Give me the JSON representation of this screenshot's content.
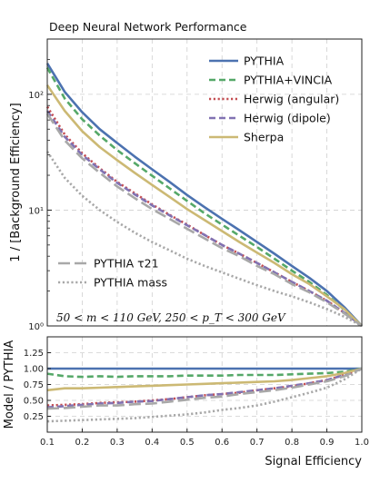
{
  "chart_data": [
    {
      "type": "line",
      "title": "Deep Neural Network Performance",
      "xlabel": "",
      "ylabel": "1 / [Background Efficiency]",
      "yscale": "log",
      "xlim": [
        0.1,
        1.0
      ],
      "ylim": [
        1,
        300
      ],
      "ytick_labels": [
        "10⁰",
        "10¹",
        "10²"
      ],
      "annotation": "50 < m < 110 GeV, 250 < p_T < 300 GeV",
      "legend_placement": "top-right",
      "grid": true,
      "x": [
        0.1,
        0.15,
        0.2,
        0.25,
        0.3,
        0.35,
        0.4,
        0.45,
        0.5,
        0.55,
        0.6,
        0.65,
        0.7,
        0.75,
        0.8,
        0.85,
        0.9,
        0.95,
        1.0
      ],
      "series": [
        {
          "name": "PYTHIA",
          "color": "#4c72b0",
          "style": "solid",
          "values": [
            185,
            105,
            70,
            50,
            38,
            29,
            22.5,
            17.5,
            13.5,
            10.6,
            8.4,
            6.7,
            5.3,
            4.2,
            3.3,
            2.6,
            2.0,
            1.45,
            1.0
          ]
        },
        {
          "name": "PYTHIA+VINCIA",
          "color": "#55a868",
          "style": "dashed",
          "values": [
            170,
            92,
            61,
            44,
            33,
            25.5,
            19.8,
            15.4,
            12.0,
            9.4,
            7.5,
            6.0,
            4.8,
            3.8,
            3.0,
            2.4,
            1.85,
            1.38,
            1.0
          ]
        },
        {
          "name": "Herwig (angular)",
          "color": "#c44e52",
          "style": "dotted",
          "values": [
            78,
            45,
            31,
            23,
            17.5,
            14.0,
            11.2,
            9.1,
            7.5,
            6.1,
            5.0,
            4.2,
            3.5,
            2.9,
            2.4,
            2.0,
            1.65,
            1.3,
            1.0
          ]
        },
        {
          "name": "Herwig (dipole)",
          "color": "#8172b2",
          "style": "dashed",
          "values": [
            72,
            43,
            30,
            22.5,
            17.2,
            13.7,
            11.0,
            9.0,
            7.4,
            6.1,
            5.0,
            4.2,
            3.5,
            2.9,
            2.4,
            2.0,
            1.65,
            1.3,
            1.0
          ]
        },
        {
          "name": "Sherpa",
          "color": "#ccb974",
          "style": "solid",
          "values": [
            120,
            72,
            48,
            35,
            27,
            21,
            16.5,
            13.0,
            10.2,
            8.2,
            6.6,
            5.3,
            4.3,
            3.5,
            2.8,
            2.3,
            1.8,
            1.4,
            1.0
          ]
        },
        {
          "name": "PYTHIA τ21",
          "color": "#a8a8a8",
          "style": "longdash",
          "values": [
            68,
            40,
            28,
            21,
            16,
            12.7,
            10.2,
            8.4,
            6.9,
            5.7,
            4.7,
            4.0,
            3.3,
            2.8,
            2.3,
            1.95,
            1.6,
            1.28,
            1.0
          ]
        },
        {
          "name": "PYTHIA mass",
          "color": "#a8a8a8",
          "style": "dotted",
          "values": [
            32,
            19,
            13.3,
            10.0,
            7.9,
            6.4,
            5.3,
            4.5,
            3.8,
            3.3,
            2.9,
            2.55,
            2.25,
            2.0,
            1.8,
            1.6,
            1.4,
            1.2,
            1.0
          ]
        }
      ]
    },
    {
      "type": "line",
      "title": "",
      "xlabel": "Signal Efficiency",
      "ylabel": "Model / PYTHIA",
      "xlim": [
        0.1,
        1.0
      ],
      "ylim": [
        0.0,
        1.5
      ],
      "xticks": [
        0.1,
        0.2,
        0.3,
        0.4,
        0.5,
        0.6,
        0.7,
        0.8,
        0.9,
        1.0
      ],
      "yticks": [
        0.25,
        0.5,
        0.75,
        1.0,
        1.25
      ],
      "grid": true,
      "x": [
        0.1,
        0.15,
        0.2,
        0.25,
        0.3,
        0.35,
        0.4,
        0.45,
        0.5,
        0.55,
        0.6,
        0.65,
        0.7,
        0.75,
        0.8,
        0.85,
        0.9,
        0.95,
        1.0
      ],
      "series": [
        {
          "name": "PYTHIA",
          "color": "#4c72b0",
          "style": "solid",
          "values": [
            1.0,
            1.0,
            1.0,
            1.0,
            1.0,
            1.0,
            1.0,
            1.0,
            1.0,
            1.0,
            1.0,
            1.0,
            1.0,
            1.0,
            1.0,
            1.0,
            1.0,
            1.0,
            1.0
          ]
        },
        {
          "name": "PYTHIA+VINCIA",
          "color": "#55a868",
          "style": "dashed",
          "values": [
            0.92,
            0.88,
            0.87,
            0.88,
            0.87,
            0.88,
            0.88,
            0.88,
            0.89,
            0.89,
            0.89,
            0.9,
            0.9,
            0.9,
            0.91,
            0.92,
            0.93,
            0.95,
            1.0
          ]
        },
        {
          "name": "Herwig (angular)",
          "color": "#c44e52",
          "style": "dotted",
          "values": [
            0.42,
            0.43,
            0.44,
            0.46,
            0.47,
            0.48,
            0.5,
            0.52,
            0.55,
            0.58,
            0.6,
            0.62,
            0.66,
            0.69,
            0.72,
            0.77,
            0.82,
            0.9,
            1.0
          ]
        },
        {
          "name": "Herwig (dipole)",
          "color": "#8172b2",
          "style": "dashed",
          "values": [
            0.39,
            0.41,
            0.43,
            0.45,
            0.46,
            0.48,
            0.49,
            0.52,
            0.55,
            0.58,
            0.6,
            0.63,
            0.66,
            0.69,
            0.73,
            0.77,
            0.82,
            0.9,
            1.0
          ]
        },
        {
          "name": "Sherpa",
          "color": "#ccb974",
          "style": "solid",
          "values": [
            0.66,
            0.69,
            0.69,
            0.7,
            0.71,
            0.72,
            0.73,
            0.74,
            0.75,
            0.76,
            0.77,
            0.78,
            0.79,
            0.8,
            0.82,
            0.85,
            0.88,
            0.93,
            1.0
          ]
        },
        {
          "name": "PYTHIA τ21",
          "color": "#a8a8a8",
          "style": "longdash",
          "values": [
            0.37,
            0.38,
            0.4,
            0.42,
            0.42,
            0.44,
            0.45,
            0.48,
            0.51,
            0.54,
            0.56,
            0.6,
            0.63,
            0.66,
            0.7,
            0.75,
            0.8,
            0.88,
            1.0
          ]
        },
        {
          "name": "PYTHIA mass",
          "color": "#a8a8a8",
          "style": "dotted",
          "values": [
            0.17,
            0.18,
            0.19,
            0.2,
            0.21,
            0.22,
            0.24,
            0.26,
            0.28,
            0.31,
            0.35,
            0.38,
            0.42,
            0.48,
            0.55,
            0.62,
            0.7,
            0.83,
            1.0
          ]
        }
      ]
    }
  ]
}
